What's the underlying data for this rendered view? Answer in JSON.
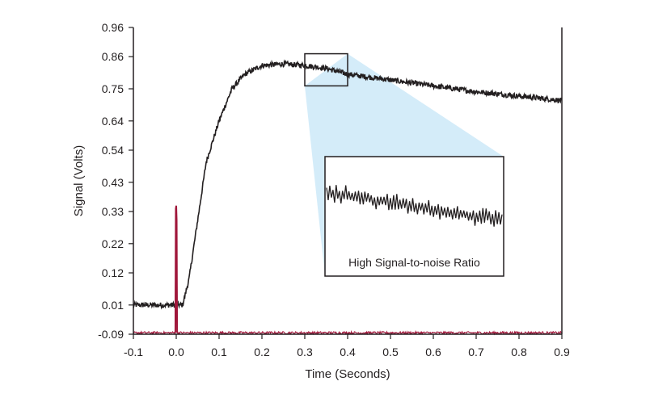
{
  "chart_data": {
    "type": "line",
    "xlabel": "Time (Seconds)",
    "ylabel": "Signal (Volts)",
    "xlim": [
      -0.1,
      0.9
    ],
    "ylim": [
      -0.09,
      0.96
    ],
    "x_ticks": [
      "-0.1",
      "0.0",
      "0.1",
      "0.2",
      "0.3",
      "0.4",
      "0.5",
      "0.6",
      "0.7",
      "0.8",
      "0.9"
    ],
    "y_ticks": [
      "-0.09",
      "0.01",
      "0.12",
      "0.22",
      "0.33",
      "0.43",
      "0.54",
      "0.64",
      "0.75",
      "0.86",
      "0.96"
    ],
    "grid": false,
    "series": [
      {
        "color": "#231f20",
        "x": [
          -0.1,
          -0.05,
          0.0,
          0.015,
          0.03,
          0.05,
          0.07,
          0.1,
          0.13,
          0.16,
          0.2,
          0.25,
          0.3,
          0.35,
          0.4,
          0.5,
          0.6,
          0.7,
          0.8,
          0.9
        ],
        "y": [
          0.01,
          0.01,
          0.01,
          0.01,
          0.1,
          0.3,
          0.5,
          0.64,
          0.75,
          0.8,
          0.83,
          0.835,
          0.83,
          0.82,
          0.8,
          0.78,
          0.76,
          0.74,
          0.725,
          0.71
        ]
      },
      {
        "color": "#a0163a",
        "x": [
          -0.1,
          -0.002,
          -0.001,
          0.0,
          0.001,
          0.002,
          0.9
        ],
        "y": [
          -0.085,
          -0.085,
          0.34,
          0.35,
          0.3,
          -0.085,
          -0.085
        ]
      }
    ],
    "annotations": [
      {
        "text": "High Signal-to-noise Ratio",
        "zoom_x": [
          0.3,
          0.4
        ],
        "zoom_y": [
          0.76,
          0.87
        ]
      }
    ],
    "colors": {
      "axis": "#231f20",
      "zoom_fill": "#d4ecf9",
      "inset_border": "#231f20"
    }
  }
}
